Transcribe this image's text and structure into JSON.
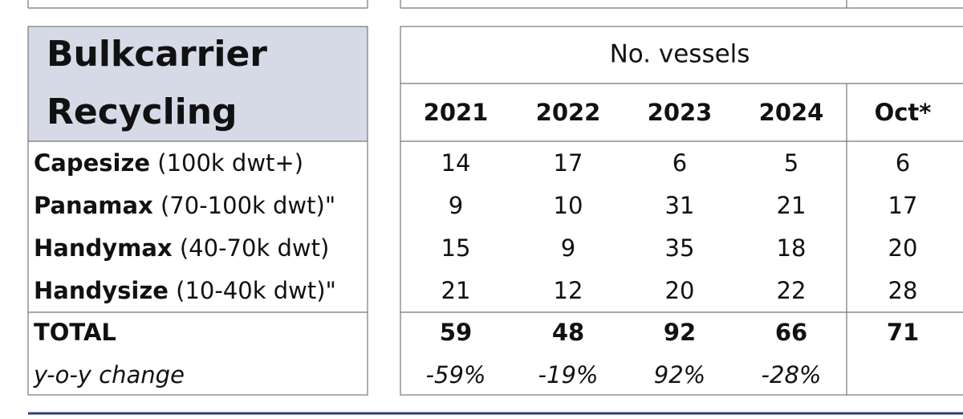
{
  "left_table": {
    "title": [
      "Bulkcarrier",
      "Recycling"
    ],
    "rows": [
      {
        "name": "Capesize",
        "spec": "(100k dwt+)"
      },
      {
        "name": "Panamax",
        "spec": "(70-100k dwt)\""
      },
      {
        "name": "Handymax",
        "spec": "(40-70k dwt)"
      },
      {
        "name": "Handysize",
        "spec": "(10-40k dwt)\""
      }
    ],
    "total_label": "TOTAL",
    "change_label": "y-o-y change"
  },
  "right_table": {
    "header": "No. vessels",
    "columns": [
      "2021",
      "2022",
      "2023",
      "2024",
      "Oct*"
    ],
    "rows": [
      [
        14,
        17,
        6,
        5,
        6
      ],
      [
        9,
        10,
        31,
        21,
        17
      ],
      [
        15,
        9,
        35,
        18,
        20
      ],
      [
        21,
        12,
        20,
        22,
        28
      ]
    ],
    "total": [
      59,
      48,
      92,
      66,
      71
    ],
    "change": [
      "-59%",
      "-19%",
      "92%",
      "-28%"
    ]
  }
}
